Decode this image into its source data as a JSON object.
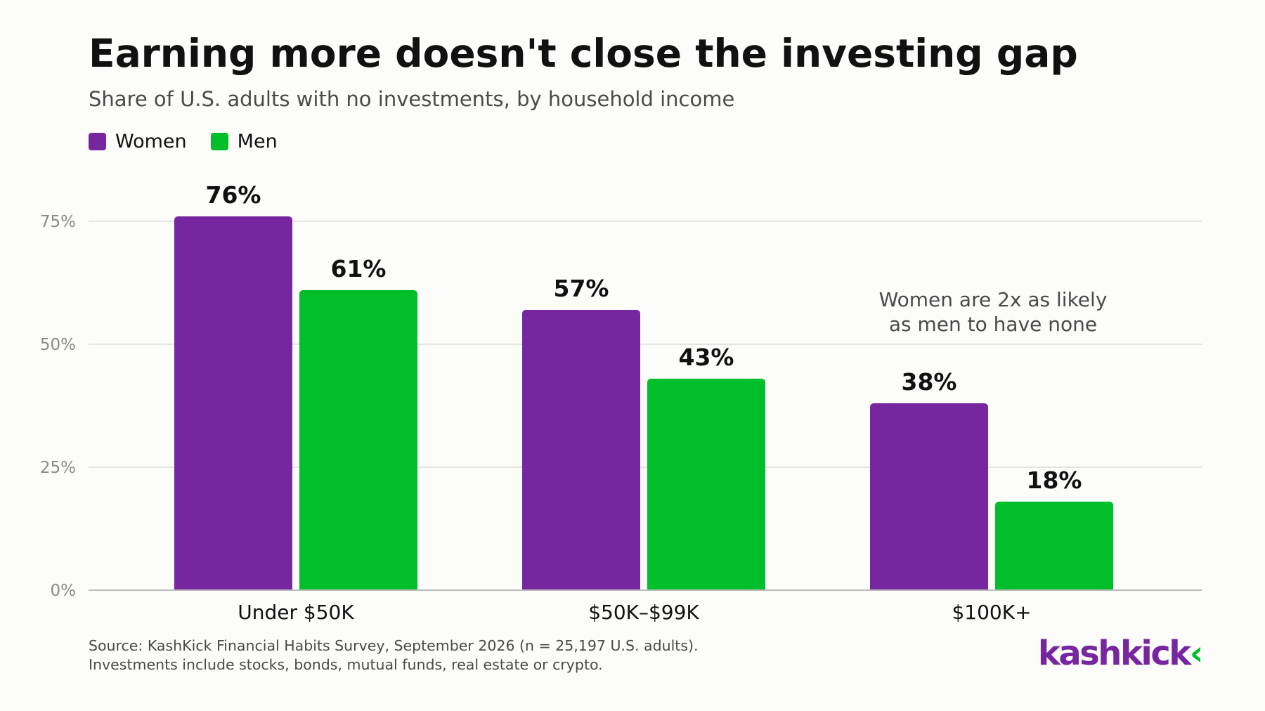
{
  "title": "Earning more doesn't close the investing gap",
  "subtitle": "Share of U.S. adults with no investments, by household income",
  "colors": {
    "women": "#7627a0",
    "men": "#00bf2b"
  },
  "chart_data": {
    "type": "bar",
    "categories": [
      "Under $50K",
      "$50K–$99K",
      "$100K+"
    ],
    "series": [
      {
        "name": "Women",
        "values": [
          76,
          57,
          38
        ],
        "labels": [
          "76%",
          "57%",
          "38%"
        ],
        "color": "#7627a0"
      },
      {
        "name": "Men",
        "values": [
          61,
          43,
          18
        ],
        "labels": [
          "61%",
          "43%",
          "18%"
        ],
        "color": "#00bf2b"
      }
    ],
    "yticks": [
      0,
      25,
      50,
      75
    ],
    "ytick_labels": [
      "0%",
      "25%",
      "50%",
      "75%"
    ],
    "ylim": [
      0,
      80
    ],
    "grid": true,
    "legend_position": "top-left",
    "annotation": [
      "Women are 2x as likely",
      "as men to have none"
    ]
  },
  "source": {
    "line1": "Source: KashKick Financial Habits Survey, September 2026 (n = 25,197 U.S. adults).",
    "line2": "Investments include stocks, bonds, mutual funds, real estate or crypto."
  },
  "logo": {
    "text": "kashkick",
    "mark": "‹"
  }
}
